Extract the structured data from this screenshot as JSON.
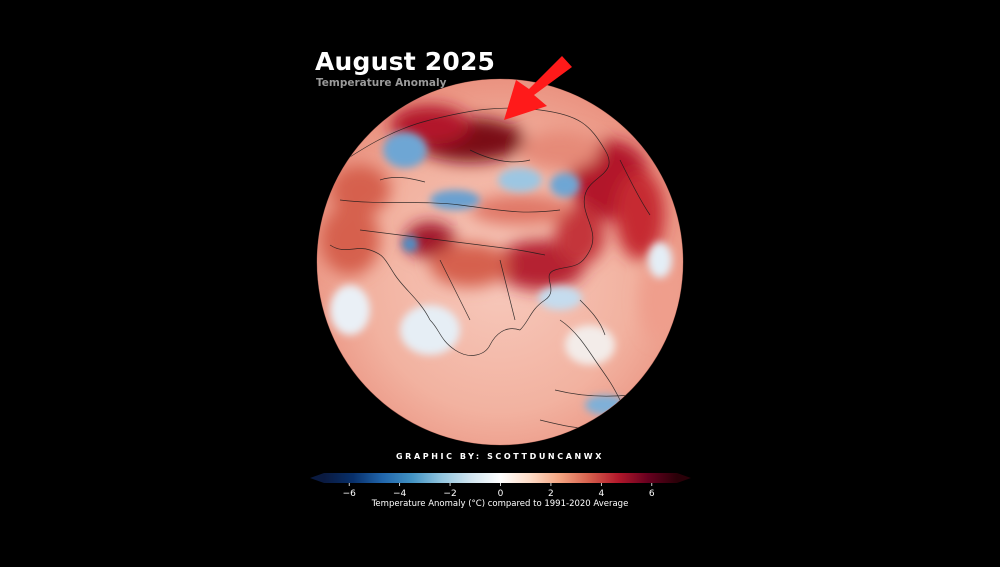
{
  "title": "August 2025",
  "subtitle": "Temperature Anomaly",
  "credit": "GRAPHIC BY: SCOTTDUNCANWX",
  "colorbar": {
    "label": "Temperature Anomaly (°C) compared to 1991-2020 Average",
    "ticks": [
      "−6",
      "−4",
      "−2",
      "0",
      "2",
      "4",
      "6"
    ],
    "min": -7,
    "max": 7,
    "colors": [
      "#0a1a40",
      "#08306b",
      "#2166ac",
      "#4393c3",
      "#92c5de",
      "#d1e5f0",
      "#ffffff",
      "#fddbc7",
      "#f4a582",
      "#d6604d",
      "#b2182b",
      "#67001f",
      "#2a0008"
    ]
  },
  "map": {
    "projection": "orthographic",
    "region": "Asia and Northern Hemisphere",
    "arrow_color": "#ff1a1a"
  }
}
